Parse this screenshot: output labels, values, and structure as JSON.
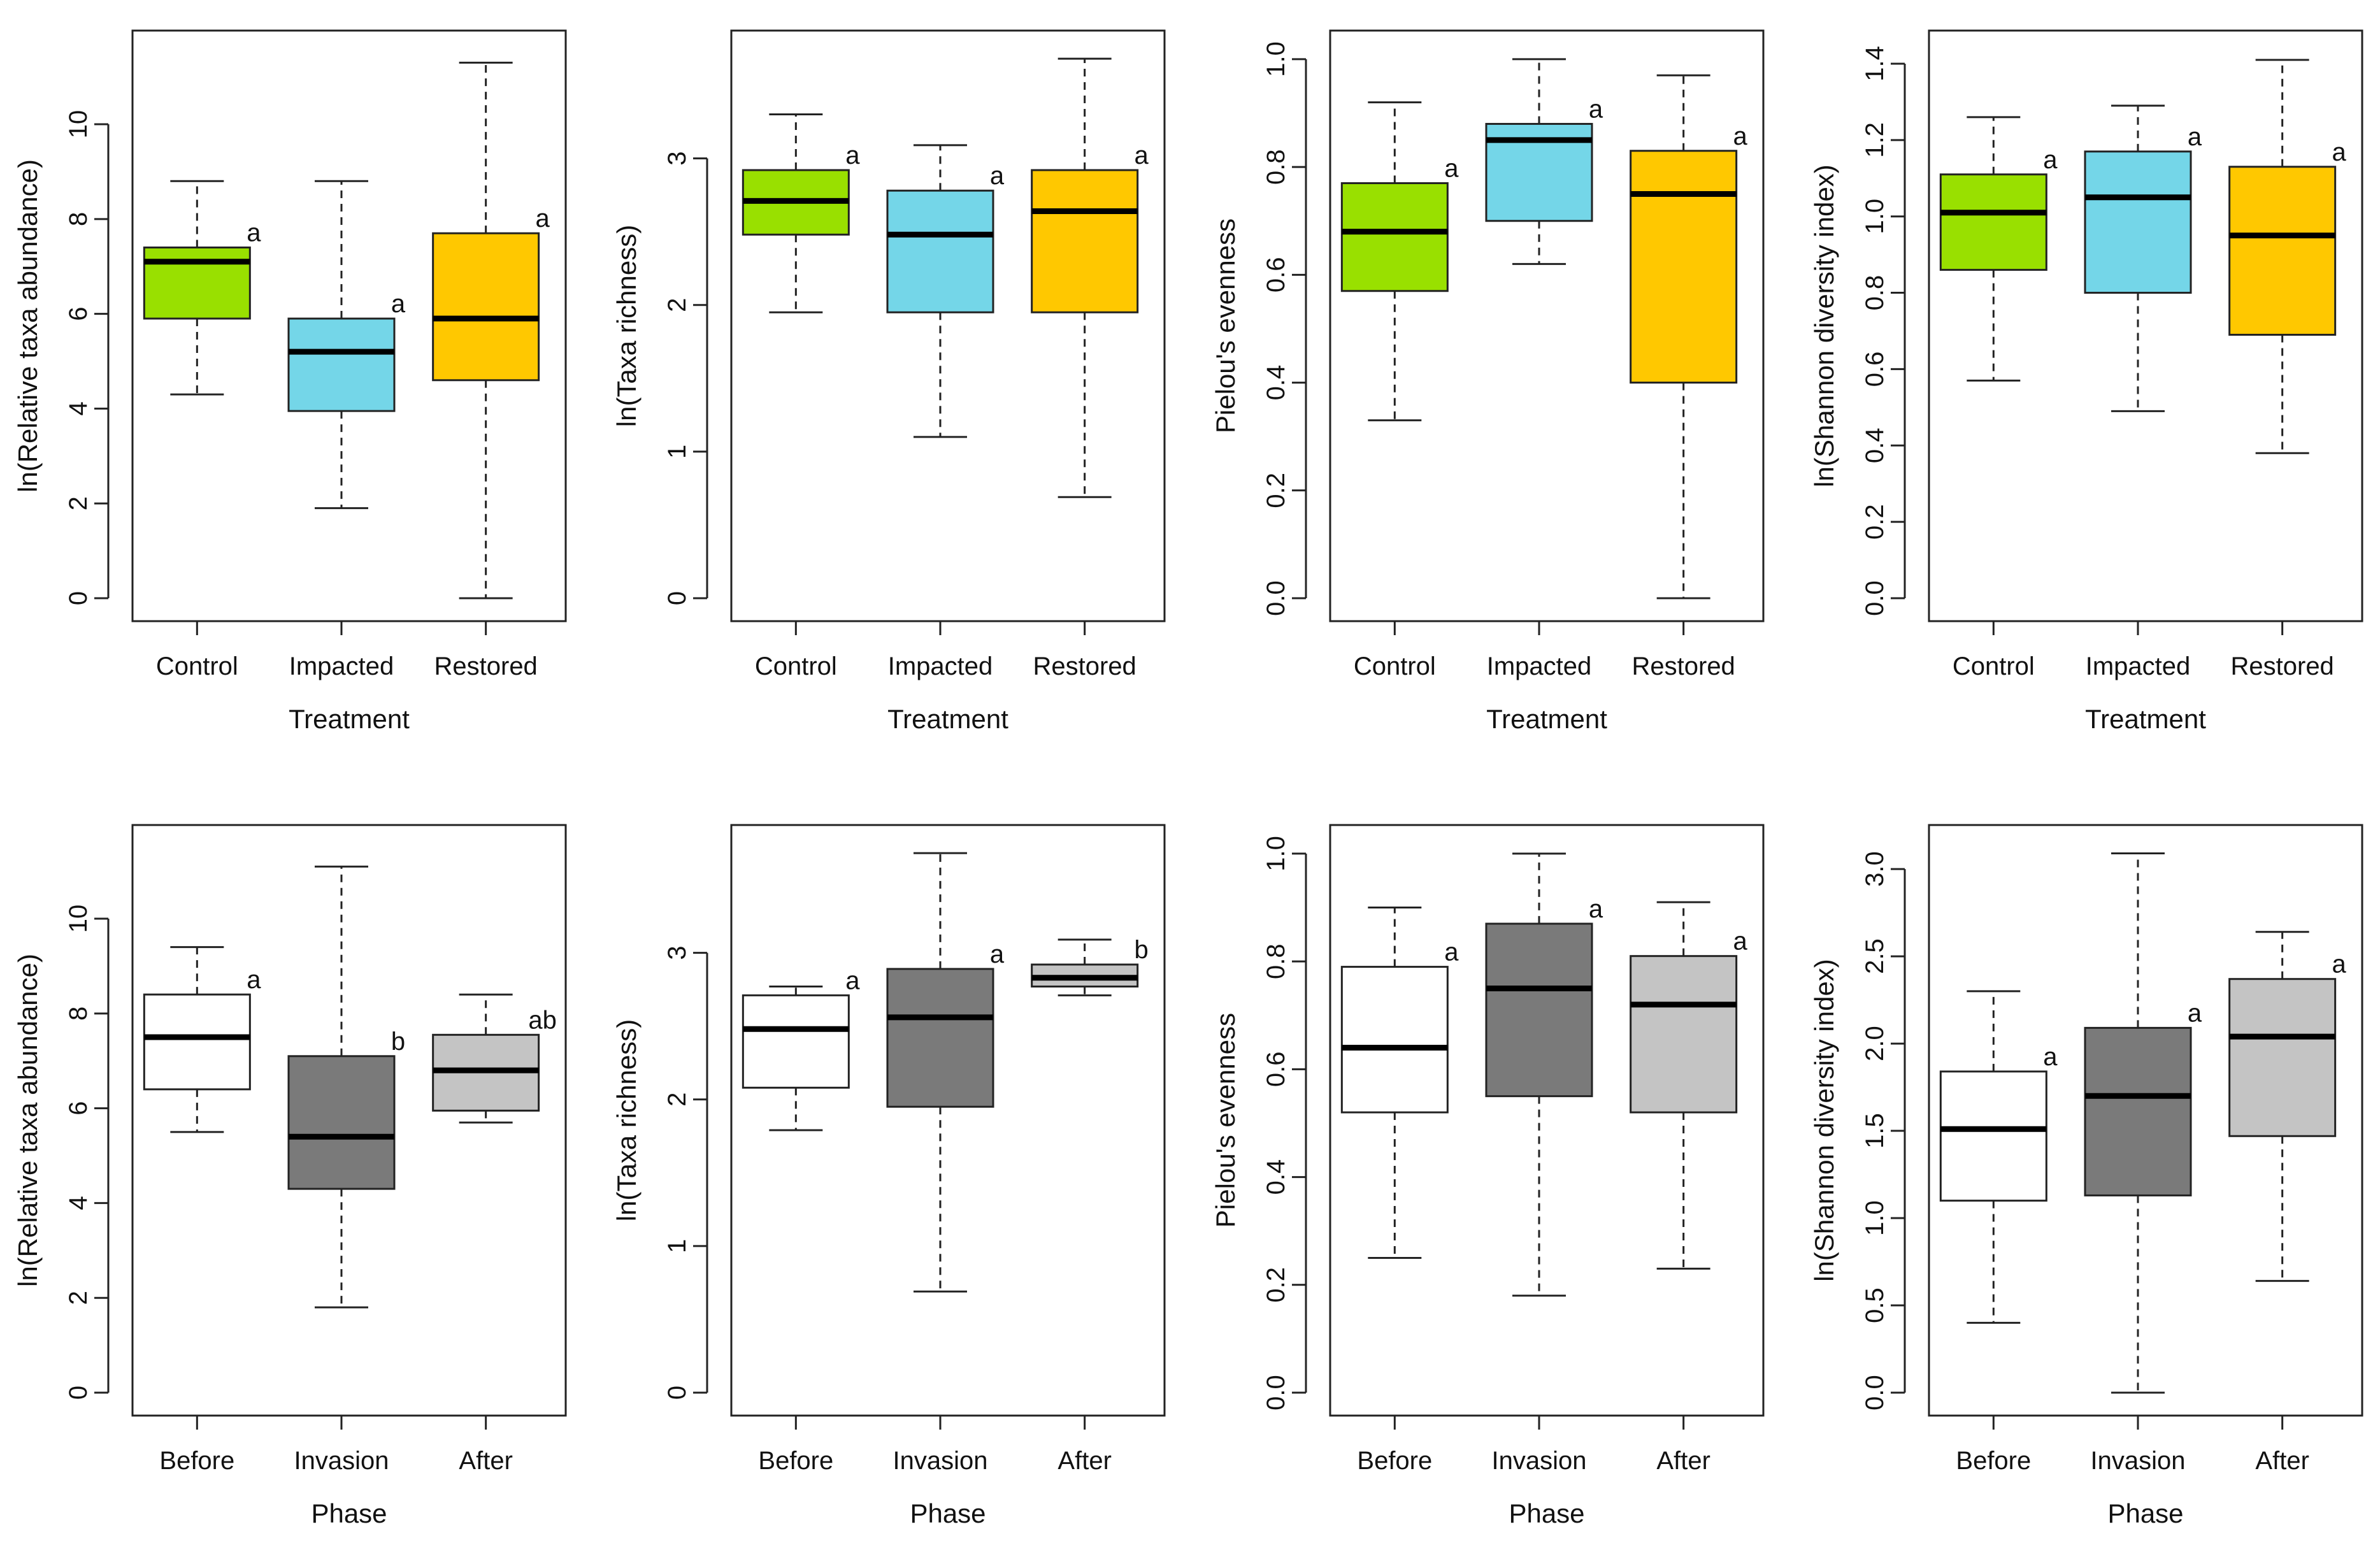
{
  "colors": {
    "Control": "#99e000",
    "Impacted": "#74d6e8",
    "Restored": "#ffc800",
    "Before": "#ffffff",
    "Invasion": "#7a7a7a",
    "After": "#c4c4c4"
  },
  "chart_data": [
    {
      "type": "box",
      "xlabel": "Treatment",
      "ylabel": "ln(Relative taxa abundance)",
      "ylim": [
        0,
        11.6
      ],
      "yticks": [
        0,
        2,
        4,
        6,
        8,
        10
      ],
      "ytick_labels": [
        "0",
        "2",
        "4",
        "6",
        "8",
        "10"
      ],
      "categories": [
        "Control",
        "Impacted",
        "Restored"
      ],
      "boxes": [
        {
          "min": 4.3,
          "q1": 5.9,
          "median": 7.1,
          "q3": 7.4,
          "max": 8.8,
          "label": "a"
        },
        {
          "min": 1.9,
          "q1": 3.95,
          "median": 5.2,
          "q3": 5.9,
          "max": 8.8,
          "label": "a"
        },
        {
          "min": 0.0,
          "q1": 4.6,
          "median": 5.9,
          "q3": 7.7,
          "max": 11.3,
          "label": "a"
        }
      ]
    },
    {
      "type": "box",
      "xlabel": "Treatment",
      "ylabel": "ln(Taxa richness)",
      "ylim": [
        0,
        3.75
      ],
      "yticks": [
        0,
        1,
        2,
        3
      ],
      "ytick_labels": [
        "0",
        "1",
        "2",
        "3"
      ],
      "categories": [
        "Control",
        "Impacted",
        "Restored"
      ],
      "boxes": [
        {
          "min": 1.95,
          "q1": 2.48,
          "median": 2.71,
          "q3": 2.92,
          "max": 3.3,
          "label": "a"
        },
        {
          "min": 1.1,
          "q1": 1.95,
          "median": 2.48,
          "q3": 2.78,
          "max": 3.09,
          "label": "a"
        },
        {
          "min": 0.69,
          "q1": 1.95,
          "median": 2.64,
          "q3": 2.92,
          "max": 3.68,
          "label": "a"
        }
      ]
    },
    {
      "type": "box",
      "xlabel": "Treatment",
      "ylabel": "Pielou's evenness",
      "ylim": [
        0,
        1.02
      ],
      "yticks": [
        0,
        0.2,
        0.4,
        0.6,
        0.8,
        1.0
      ],
      "ytick_labels": [
        "0.0",
        "0.2",
        "0.4",
        "0.6",
        "0.8",
        "1.0"
      ],
      "categories": [
        "Control",
        "Impacted",
        "Restored"
      ],
      "boxes": [
        {
          "min": 0.33,
          "q1": 0.57,
          "median": 0.68,
          "q3": 0.77,
          "max": 0.92,
          "label": "a"
        },
        {
          "min": 0.62,
          "q1": 0.7,
          "median": 0.85,
          "q3": 0.88,
          "max": 1.0,
          "label": "a"
        },
        {
          "min": 0.0,
          "q1": 0.4,
          "median": 0.75,
          "q3": 0.83,
          "max": 0.97,
          "label": "a"
        }
      ]
    },
    {
      "type": "box",
      "xlabel": "Treatment",
      "ylabel": "ln(Shannon diversity index)",
      "ylim": [
        0,
        1.44
      ],
      "yticks": [
        0,
        0.2,
        0.4,
        0.6,
        0.8,
        1.0,
        1.2,
        1.4
      ],
      "ytick_labels": [
        "0.0",
        "0.2",
        "0.4",
        "0.6",
        "0.8",
        "1.0",
        "1.2",
        "1.4"
      ],
      "categories": [
        "Control",
        "Impacted",
        "Restored"
      ],
      "boxes": [
        {
          "min": 0.57,
          "q1": 0.86,
          "median": 1.01,
          "q3": 1.11,
          "max": 1.26,
          "label": "a"
        },
        {
          "min": 0.49,
          "q1": 0.8,
          "median": 1.05,
          "q3": 1.17,
          "max": 1.29,
          "label": "a"
        },
        {
          "min": 0.38,
          "q1": 0.69,
          "median": 0.95,
          "q3": 1.13,
          "max": 1.41,
          "label": "a"
        }
      ]
    },
    {
      "type": "box",
      "xlabel": "Phase",
      "ylabel": "ln(Relative taxa abundance)",
      "ylim": [
        0,
        11.6
      ],
      "yticks": [
        0,
        2,
        4,
        6,
        8,
        10
      ],
      "ytick_labels": [
        "0",
        "2",
        "4",
        "6",
        "8",
        "10"
      ],
      "categories": [
        "Before",
        "Invasion",
        "After"
      ],
      "boxes": [
        {
          "min": 5.5,
          "q1": 6.4,
          "median": 7.5,
          "q3": 8.4,
          "max": 9.4,
          "label": "a"
        },
        {
          "min": 1.8,
          "q1": 4.3,
          "median": 5.4,
          "q3": 7.1,
          "max": 11.1,
          "label": "b"
        },
        {
          "min": 5.7,
          "q1": 5.95,
          "median": 6.8,
          "q3": 7.55,
          "max": 8.4,
          "label": "ab"
        }
      ]
    },
    {
      "type": "box",
      "xlabel": "Phase",
      "ylabel": "ln(Taxa richness)",
      "ylim": [
        0,
        3.75
      ],
      "yticks": [
        0,
        1,
        2,
        3
      ],
      "ytick_labels": [
        "0",
        "1",
        "2",
        "3"
      ],
      "categories": [
        "Before",
        "Invasion",
        "After"
      ],
      "boxes": [
        {
          "min": 1.79,
          "q1": 2.08,
          "median": 2.48,
          "q3": 2.71,
          "max": 2.77,
          "label": "a"
        },
        {
          "min": 0.69,
          "q1": 1.95,
          "median": 2.56,
          "q3": 2.89,
          "max": 3.68,
          "label": "a"
        },
        {
          "min": 2.71,
          "q1": 2.77,
          "median": 2.83,
          "q3": 2.92,
          "max": 3.09,
          "label": "b"
        }
      ]
    },
    {
      "type": "box",
      "xlabel": "Phase",
      "ylabel": "Pielou's evenness",
      "ylim": [
        0,
        1.02
      ],
      "yticks": [
        0,
        0.2,
        0.4,
        0.6,
        0.8,
        1.0
      ],
      "ytick_labels": [
        "0.0",
        "0.2",
        "0.4",
        "0.6",
        "0.8",
        "1.0"
      ],
      "categories": [
        "Before",
        "Invasion",
        "After"
      ],
      "boxes": [
        {
          "min": 0.25,
          "q1": 0.52,
          "median": 0.64,
          "q3": 0.79,
          "max": 0.9,
          "label": "a"
        },
        {
          "min": 0.18,
          "q1": 0.55,
          "median": 0.75,
          "q3": 0.87,
          "max": 1.0,
          "label": "a"
        },
        {
          "min": 0.23,
          "q1": 0.52,
          "median": 0.72,
          "q3": 0.81,
          "max": 0.91,
          "label": "a"
        }
      ]
    },
    {
      "type": "box",
      "xlabel": "Phase",
      "ylabel": "ln(Shannon diversity index)",
      "ylim": [
        0,
        3.15
      ],
      "yticks": [
        0,
        0.5,
        1.0,
        1.5,
        2.0,
        2.5,
        3.0
      ],
      "ytick_labels": [
        "0.0",
        "0.5",
        "1.0",
        "1.5",
        "2.0",
        "2.5",
        "3.0"
      ],
      "categories": [
        "Before",
        "Invasion",
        "After"
      ],
      "boxes": [
        {
          "min": 0.4,
          "q1": 1.1,
          "median": 1.51,
          "q3": 1.84,
          "max": 2.3,
          "label": "a"
        },
        {
          "min": 0.0,
          "q1": 1.13,
          "median": 1.7,
          "q3": 2.09,
          "max": 3.09,
          "label": "a"
        },
        {
          "min": 0.64,
          "q1": 1.47,
          "median": 2.04,
          "q3": 2.37,
          "max": 2.64,
          "label": "a"
        }
      ]
    }
  ]
}
